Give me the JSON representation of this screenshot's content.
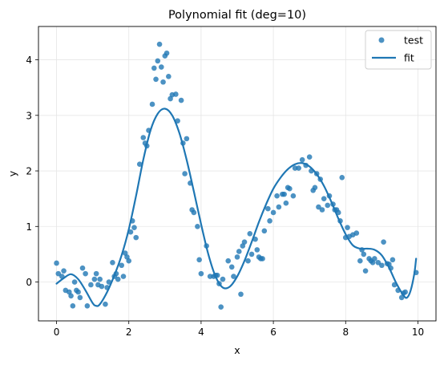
{
  "chart_data": {
    "type": "scatter",
    "title": "Polynomial fit (deg=10)",
    "xlabel": "x",
    "ylabel": "y",
    "xlim": [
      -0.5,
      10.5
    ],
    "ylim": [
      -0.7,
      4.6
    ],
    "xticks": [
      0,
      2,
      4,
      6,
      8,
      10
    ],
    "yticks": [
      0,
      1,
      2,
      3,
      4
    ],
    "grid": true,
    "legend": {
      "placement": "top-right",
      "entries": [
        "test",
        "fit"
      ]
    },
    "colors": {
      "test": "#1f77b4",
      "fit": "#1f77b4"
    },
    "series": [
      {
        "name": "test",
        "kind": "scatter",
        "points": [
          [
            0.0,
            0.34
          ],
          [
            0.05,
            0.15
          ],
          [
            0.15,
            0.1
          ],
          [
            0.2,
            0.2
          ],
          [
            0.25,
            -0.15
          ],
          [
            0.35,
            -0.18
          ],
          [
            0.4,
            -0.25
          ],
          [
            0.45,
            -0.43
          ],
          [
            0.5,
            0.0
          ],
          [
            0.55,
            -0.15
          ],
          [
            0.6,
            -0.18
          ],
          [
            0.65,
            -0.28
          ],
          [
            0.72,
            0.25
          ],
          [
            0.8,
            0.15
          ],
          [
            0.85,
            -0.43
          ],
          [
            0.95,
            -0.05
          ],
          [
            1.05,
            0.05
          ],
          [
            1.1,
            0.15
          ],
          [
            1.15,
            -0.05
          ],
          [
            1.2,
            0.05
          ],
          [
            1.25,
            -0.08
          ],
          [
            1.35,
            -0.4
          ],
          [
            1.4,
            -0.1
          ],
          [
            1.45,
            0.0
          ],
          [
            1.55,
            0.35
          ],
          [
            1.6,
            0.1
          ],
          [
            1.65,
            0.15
          ],
          [
            1.7,
            0.05
          ],
          [
            1.8,
            0.3
          ],
          [
            1.85,
            0.1
          ],
          [
            1.9,
            0.52
          ],
          [
            1.95,
            0.45
          ],
          [
            2.0,
            0.38
          ],
          [
            2.05,
            0.9
          ],
          [
            2.1,
            1.1
          ],
          [
            2.15,
            0.98
          ],
          [
            2.2,
            0.8
          ],
          [
            2.3,
            2.12
          ],
          [
            2.4,
            2.6
          ],
          [
            2.45,
            2.5
          ],
          [
            2.5,
            2.45
          ],
          [
            2.55,
            2.73
          ],
          [
            2.65,
            3.2
          ],
          [
            2.7,
            3.85
          ],
          [
            2.75,
            3.65
          ],
          [
            2.8,
            3.98
          ],
          [
            2.85,
            4.28
          ],
          [
            2.9,
            3.87
          ],
          [
            2.95,
            3.6
          ],
          [
            3.0,
            4.07
          ],
          [
            3.05,
            4.12
          ],
          [
            3.1,
            3.7
          ],
          [
            3.15,
            3.3
          ],
          [
            3.2,
            3.37
          ],
          [
            3.3,
            3.38
          ],
          [
            3.35,
            2.9
          ],
          [
            3.45,
            3.27
          ],
          [
            3.5,
            2.5
          ],
          [
            3.55,
            1.95
          ],
          [
            3.6,
            2.58
          ],
          [
            3.7,
            1.78
          ],
          [
            3.75,
            1.3
          ],
          [
            3.8,
            1.25
          ],
          [
            3.9,
            1.0
          ],
          [
            3.95,
            0.4
          ],
          [
            4.0,
            0.15
          ],
          [
            4.15,
            0.65
          ],
          [
            4.25,
            0.1
          ],
          [
            4.35,
            0.1
          ],
          [
            4.4,
            0.12
          ],
          [
            4.45,
            0.12
          ],
          [
            4.5,
            -0.03
          ],
          [
            4.55,
            -0.45
          ],
          [
            4.6,
            0.05
          ],
          [
            4.75,
            0.38
          ],
          [
            4.85,
            0.27
          ],
          [
            4.9,
            0.1
          ],
          [
            5.0,
            0.45
          ],
          [
            5.05,
            0.55
          ],
          [
            5.1,
            -0.22
          ],
          [
            5.15,
            0.65
          ],
          [
            5.2,
            0.72
          ],
          [
            5.3,
            0.38
          ],
          [
            5.35,
            0.87
          ],
          [
            5.4,
            0.5
          ],
          [
            5.5,
            0.77
          ],
          [
            5.55,
            0.58
          ],
          [
            5.6,
            0.45
          ],
          [
            5.65,
            0.42
          ],
          [
            5.7,
            0.42
          ],
          [
            5.75,
            0.92
          ],
          [
            5.85,
            1.32
          ],
          [
            5.9,
            1.1
          ],
          [
            6.0,
            1.25
          ],
          [
            6.1,
            1.55
          ],
          [
            6.15,
            1.35
          ],
          [
            6.25,
            1.58
          ],
          [
            6.3,
            1.58
          ],
          [
            6.35,
            1.42
          ],
          [
            6.4,
            1.7
          ],
          [
            6.45,
            1.68
          ],
          [
            6.55,
            1.55
          ],
          [
            6.6,
            2.05
          ],
          [
            6.7,
            2.05
          ],
          [
            6.8,
            2.2
          ],
          [
            6.9,
            2.1
          ],
          [
            7.0,
            2.25
          ],
          [
            7.05,
            2.0
          ],
          [
            7.1,
            1.65
          ],
          [
            7.15,
            1.7
          ],
          [
            7.2,
            1.95
          ],
          [
            7.25,
            1.35
          ],
          [
            7.3,
            1.85
          ],
          [
            7.35,
            1.3
          ],
          [
            7.4,
            1.5
          ],
          [
            7.5,
            1.38
          ],
          [
            7.55,
            1.55
          ],
          [
            7.65,
            1.4
          ],
          [
            7.7,
            1.3
          ],
          [
            7.75,
            1.3
          ],
          [
            7.8,
            1.25
          ],
          [
            7.85,
            1.1
          ],
          [
            7.9,
            1.88
          ],
          [
            8.0,
            0.8
          ],
          [
            8.05,
            0.98
          ],
          [
            8.1,
            0.82
          ],
          [
            8.2,
            0.85
          ],
          [
            8.3,
            0.88
          ],
          [
            8.4,
            0.38
          ],
          [
            8.45,
            0.58
          ],
          [
            8.5,
            0.5
          ],
          [
            8.55,
            0.2
          ],
          [
            8.65,
            0.42
          ],
          [
            8.7,
            0.38
          ],
          [
            8.75,
            0.35
          ],
          [
            8.8,
            0.42
          ],
          [
            8.9,
            0.35
          ],
          [
            9.0,
            0.3
          ],
          [
            9.05,
            0.72
          ],
          [
            9.15,
            0.33
          ],
          [
            9.2,
            0.32
          ],
          [
            9.25,
            0.25
          ],
          [
            9.3,
            0.4
          ],
          [
            9.35,
            -0.05
          ],
          [
            9.45,
            -0.15
          ],
          [
            9.55,
            -0.28
          ],
          [
            9.6,
            -0.2
          ],
          [
            9.65,
            -0.18
          ],
          [
            9.95,
            0.17
          ]
        ]
      },
      {
        "name": "fit",
        "kind": "line",
        "points": [
          [
            0.0,
            -0.03
          ],
          [
            0.2,
            0.07
          ],
          [
            0.4,
            0.14
          ],
          [
            0.6,
            0.05
          ],
          [
            0.8,
            -0.15
          ],
          [
            1.0,
            -0.38
          ],
          [
            1.1,
            -0.43
          ],
          [
            1.2,
            -0.4
          ],
          [
            1.4,
            -0.18
          ],
          [
            1.6,
            0.12
          ],
          [
            1.8,
            0.48
          ],
          [
            2.0,
            0.95
          ],
          [
            2.2,
            1.55
          ],
          [
            2.4,
            2.2
          ],
          [
            2.6,
            2.73
          ],
          [
            2.8,
            3.03
          ],
          [
            3.0,
            3.12
          ],
          [
            3.2,
            3.0
          ],
          [
            3.4,
            2.68
          ],
          [
            3.6,
            2.2
          ],
          [
            3.8,
            1.63
          ],
          [
            4.0,
            1.04
          ],
          [
            4.2,
            0.5
          ],
          [
            4.4,
            0.1
          ],
          [
            4.6,
            -0.1
          ],
          [
            4.8,
            -0.08
          ],
          [
            5.0,
            0.1
          ],
          [
            5.2,
            0.38
          ],
          [
            5.4,
            0.72
          ],
          [
            5.6,
            1.08
          ],
          [
            5.8,
            1.4
          ],
          [
            6.0,
            1.68
          ],
          [
            6.2,
            1.88
          ],
          [
            6.4,
            2.03
          ],
          [
            6.6,
            2.12
          ],
          [
            6.8,
            2.14
          ],
          [
            7.0,
            2.08
          ],
          [
            7.2,
            1.94
          ],
          [
            7.4,
            1.73
          ],
          [
            7.6,
            1.45
          ],
          [
            7.8,
            1.14
          ],
          [
            8.0,
            0.86
          ],
          [
            8.2,
            0.66
          ],
          [
            8.4,
            0.6
          ],
          [
            8.6,
            0.6
          ],
          [
            8.8,
            0.58
          ],
          [
            9.0,
            0.48
          ],
          [
            9.2,
            0.26
          ],
          [
            9.4,
            -0.02
          ],
          [
            9.6,
            -0.24
          ],
          [
            9.7,
            -0.28
          ],
          [
            9.8,
            -0.15
          ],
          [
            9.9,
            0.15
          ],
          [
            9.95,
            0.42
          ]
        ]
      }
    ]
  }
}
